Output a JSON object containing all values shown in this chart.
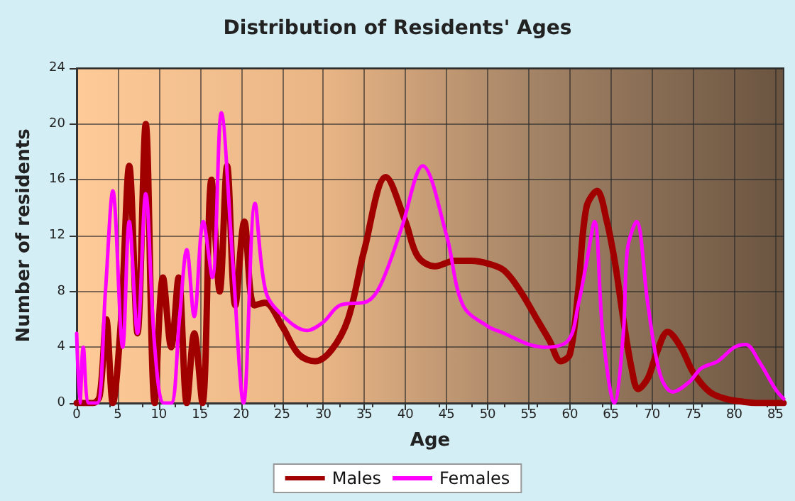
{
  "chart_data": {
    "type": "line",
    "title": "Distribution of Residents' Ages",
    "xlabel": "Age",
    "ylabel": "Number of residents",
    "xlim": [
      0,
      86
    ],
    "xticks": [
      0,
      5,
      10,
      15,
      20,
      25,
      30,
      35,
      40,
      45,
      50,
      55,
      60,
      65,
      70,
      75,
      80,
      85
    ],
    "ylim": [
      0,
      24
    ],
    "yticks": [
      0,
      4,
      8,
      12,
      16,
      20,
      24
    ],
    "grid": true,
    "legend": "bottom",
    "marker": "none",
    "line_style": "solid",
    "series": [
      {
        "name": "Males",
        "color": "#a00000",
        "x": [
          0,
          1,
          2,
          2.8,
          3.6,
          4.4,
          5.4,
          6.4,
          7.4,
          8.4,
          9.5,
          10.5,
          11.5,
          12.4,
          13.4,
          14.3,
          15.3,
          16.4,
          17.4,
          18.3,
          19.3,
          20.4,
          21.6,
          22.9,
          25,
          27,
          29,
          31,
          33,
          35,
          37.6,
          40,
          41.5,
          43.6,
          46,
          48,
          50,
          52,
          54,
          56,
          57.5,
          58.9,
          60,
          61,
          62,
          63.3,
          64.5,
          65.5,
          66.5,
          67.5,
          68.3,
          69.5,
          70.5,
          71.9,
          73.5,
          75,
          77,
          79,
          81,
          83,
          86
        ],
        "values": [
          0,
          0,
          0,
          0.5,
          6,
          0,
          6,
          17,
          5,
          20,
          0,
          9,
          4,
          9,
          0,
          5,
          0,
          16,
          8,
          17,
          7,
          13,
          7,
          7.2,
          5.5,
          3.5,
          3,
          3.8,
          6,
          11,
          16.2,
          13,
          10.5,
          9.8,
          10.2,
          10.2,
          10,
          9.5,
          8,
          6,
          4.5,
          3,
          3.5,
          8,
          14,
          15.2,
          13,
          10,
          6,
          2.5,
          1,
          1.8,
          3.5,
          5.1,
          4,
          2.2,
          0.8,
          0.3,
          0.1,
          0,
          0
        ]
      },
      {
        "name": "Females",
        "color": "#ff00ff",
        "x": [
          0,
          0.4,
          0.8,
          1.5,
          2.5,
          3.5,
          4.4,
          5.6,
          6.4,
          7.4,
          8.4,
          9.5,
          10.6,
          11.5,
          12.5,
          13.4,
          14.3,
          15.4,
          16.5,
          17.6,
          19,
          20.3,
          21.7,
          23,
          25,
          28,
          30,
          32,
          35.4,
          37,
          39.5,
          42.1,
          45,
          47,
          50,
          52,
          55,
          57,
          59.8,
          61,
          62,
          63,
          64,
          65.4,
          66.5,
          67,
          68.1,
          69.5,
          71,
          72.5,
          74.5,
          76,
          78,
          80,
          81.4,
          83,
          85,
          86
        ],
        "values": [
          5,
          0,
          4,
          0,
          0,
          8,
          15.2,
          4,
          13,
          5,
          15,
          4,
          0,
          0,
          6,
          11,
          6.2,
          13,
          9,
          20.8,
          10,
          0,
          14.3,
          8,
          6.3,
          5.2,
          5.8,
          7,
          7.3,
          8.5,
          12.5,
          17,
          12,
          7,
          5.5,
          5,
          4.2,
          4,
          4.5,
          7,
          10,
          13,
          5,
          0,
          5,
          11,
          13,
          7,
          2,
          0.8,
          1.5,
          2.5,
          3,
          4,
          4.2,
          3,
          1,
          0.3
        ]
      }
    ]
  }
}
